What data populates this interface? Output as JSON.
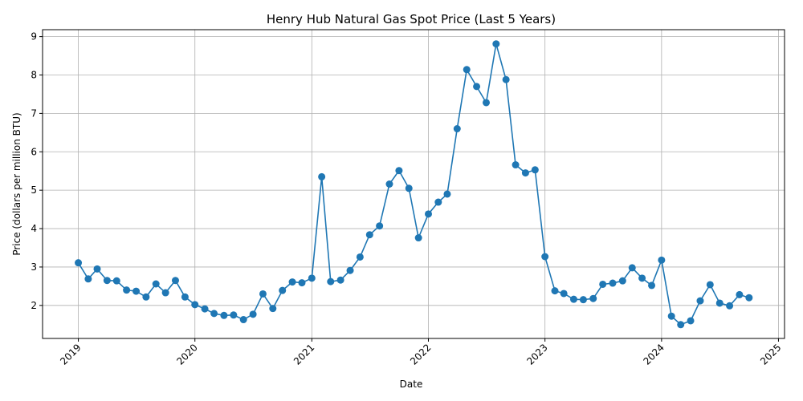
{
  "chart_data": {
    "type": "line",
    "title": "Henry Hub Natural Gas Spot Price (Last 5 Years)",
    "xlabel": "Date",
    "ylabel": "Price (dollars per million BTU)",
    "x_ticks": [
      "2019",
      "2020",
      "2021",
      "2022",
      "2023",
      "2024",
      "2025"
    ],
    "y_ticks": [
      2,
      3,
      4,
      5,
      6,
      7,
      8,
      9
    ],
    "xlim": [
      "2018-09-11",
      "2025-01-20"
    ],
    "ylim": [
      1.14,
      9.18
    ],
    "grid": true,
    "legend": "none",
    "series_color": "#1f77b4",
    "series": [
      {
        "x": [
          "2019-01",
          "2019-02",
          "2019-03",
          "2019-04",
          "2019-05",
          "2019-06",
          "2019-07",
          "2019-08",
          "2019-09",
          "2019-10",
          "2019-11",
          "2019-12",
          "2020-01",
          "2020-02",
          "2020-03",
          "2020-04",
          "2020-05",
          "2020-06",
          "2020-07",
          "2020-08",
          "2020-09",
          "2020-10",
          "2020-11",
          "2020-12",
          "2021-01",
          "2021-02",
          "2021-03",
          "2021-04",
          "2021-05",
          "2021-06",
          "2021-07",
          "2021-08",
          "2021-09",
          "2021-10",
          "2021-11",
          "2021-12",
          "2022-01",
          "2022-02",
          "2022-03",
          "2022-04",
          "2022-05",
          "2022-06",
          "2022-07",
          "2022-08",
          "2022-09",
          "2022-10",
          "2022-11",
          "2022-12",
          "2023-01",
          "2023-02",
          "2023-03",
          "2023-04",
          "2023-05",
          "2023-06",
          "2023-07",
          "2023-08",
          "2023-09",
          "2023-10",
          "2023-11",
          "2023-12",
          "2024-01",
          "2024-02",
          "2024-03",
          "2024-04",
          "2024-05",
          "2024-06",
          "2024-07",
          "2024-08",
          "2024-09",
          "2024-10"
        ],
        "y": [
          3.11,
          2.69,
          2.95,
          2.65,
          2.64,
          2.4,
          2.37,
          2.22,
          2.56,
          2.33,
          2.65,
          2.22,
          2.02,
          1.91,
          1.79,
          1.74,
          1.75,
          1.63,
          1.77,
          2.3,
          1.92,
          2.39,
          2.61,
          2.59,
          2.71,
          5.35,
          2.62,
          2.66,
          2.91,
          3.26,
          3.84,
          4.07,
          5.16,
          5.51,
          5.05,
          3.76,
          4.38,
          4.69,
          4.9,
          6.6,
          8.14,
          7.7,
          7.28,
          8.81,
          7.88,
          5.66,
          5.45,
          5.53,
          3.27,
          2.38,
          2.31,
          2.16,
          2.15,
          2.18,
          2.55,
          2.58,
          2.64,
          2.98,
          2.71,
          2.52,
          3.18,
          1.72,
          1.5,
          1.6,
          2.12,
          2.54,
          2.06,
          1.99,
          2.28,
          2.2
        ]
      }
    ]
  }
}
